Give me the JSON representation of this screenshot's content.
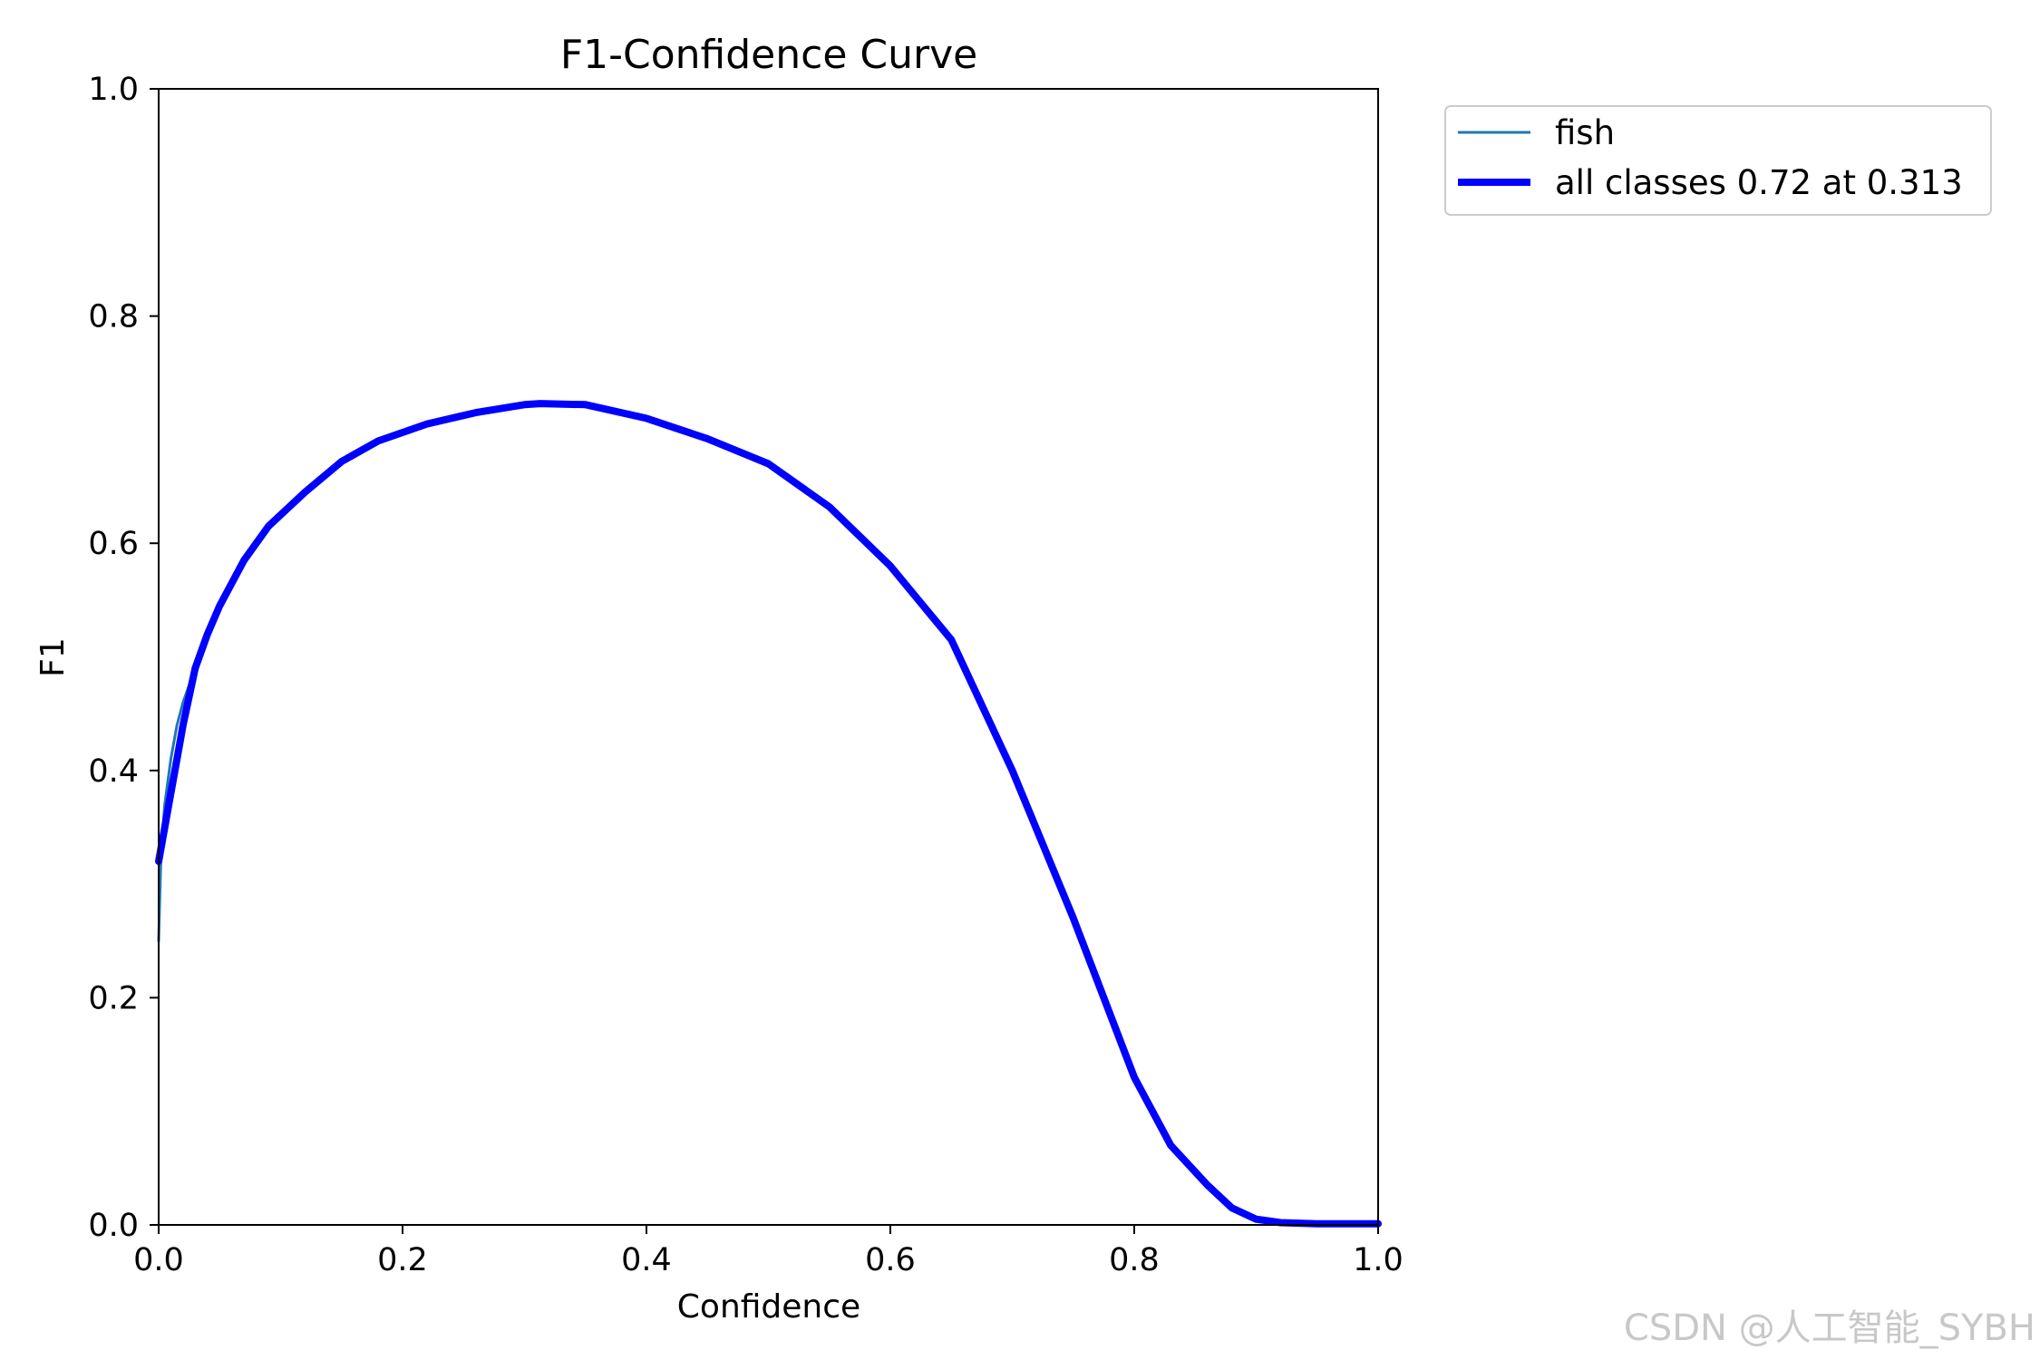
{
  "chart_data": {
    "type": "line",
    "title": "F1-Confidence Curve",
    "xlabel": "Confidence",
    "ylabel": "F1",
    "xlim": [
      0,
      1
    ],
    "ylim": [
      0,
      1
    ],
    "xticks": [
      "0.0",
      "0.2",
      "0.4",
      "0.6",
      "0.8",
      "1.0"
    ],
    "yticks": [
      "0.0",
      "0.2",
      "0.4",
      "0.6",
      "0.8",
      "1.0"
    ],
    "grid": false,
    "legend_position": "outside-top-right",
    "series": [
      {
        "name": "fish",
        "color": "#1f77b4",
        "x": [
          0.0,
          0.002,
          0.005,
          0.01,
          0.015,
          0.02,
          0.03,
          0.04,
          0.05,
          0.07,
          0.09,
          0.12,
          0.15,
          0.18,
          0.22,
          0.26,
          0.3,
          0.313,
          0.35,
          0.4,
          0.45,
          0.5,
          0.55,
          0.6,
          0.65,
          0.7,
          0.75,
          0.8,
          0.83,
          0.86,
          0.88,
          0.9,
          0.92,
          0.95,
          1.0
        ],
        "y": [
          0.25,
          0.33,
          0.37,
          0.41,
          0.44,
          0.46,
          0.49,
          0.52,
          0.545,
          0.585,
          0.615,
          0.645,
          0.672,
          0.69,
          0.705,
          0.715,
          0.722,
          0.723,
          0.722,
          0.71,
          0.692,
          0.67,
          0.632,
          0.58,
          0.515,
          0.4,
          0.27,
          0.13,
          0.07,
          0.035,
          0.015,
          0.005,
          0.002,
          0.001,
          0.001
        ]
      },
      {
        "name": "all classes 0.72 at 0.313",
        "color": "#0000ff",
        "x": [
          0.0,
          0.005,
          0.01,
          0.015,
          0.02,
          0.03,
          0.04,
          0.05,
          0.07,
          0.09,
          0.12,
          0.15,
          0.18,
          0.22,
          0.26,
          0.3,
          0.313,
          0.35,
          0.4,
          0.45,
          0.5,
          0.55,
          0.6,
          0.65,
          0.7,
          0.75,
          0.8,
          0.83,
          0.86,
          0.88,
          0.9,
          0.92,
          0.95,
          1.0
        ],
        "y": [
          0.32,
          0.35,
          0.38,
          0.41,
          0.44,
          0.49,
          0.52,
          0.545,
          0.585,
          0.615,
          0.645,
          0.672,
          0.69,
          0.705,
          0.715,
          0.722,
          0.723,
          0.722,
          0.71,
          0.692,
          0.67,
          0.632,
          0.58,
          0.515,
          0.4,
          0.27,
          0.13,
          0.07,
          0.035,
          0.015,
          0.005,
          0.002,
          0.001,
          0.001
        ]
      }
    ]
  },
  "watermark": "CSDN @人工智能_SYBH"
}
